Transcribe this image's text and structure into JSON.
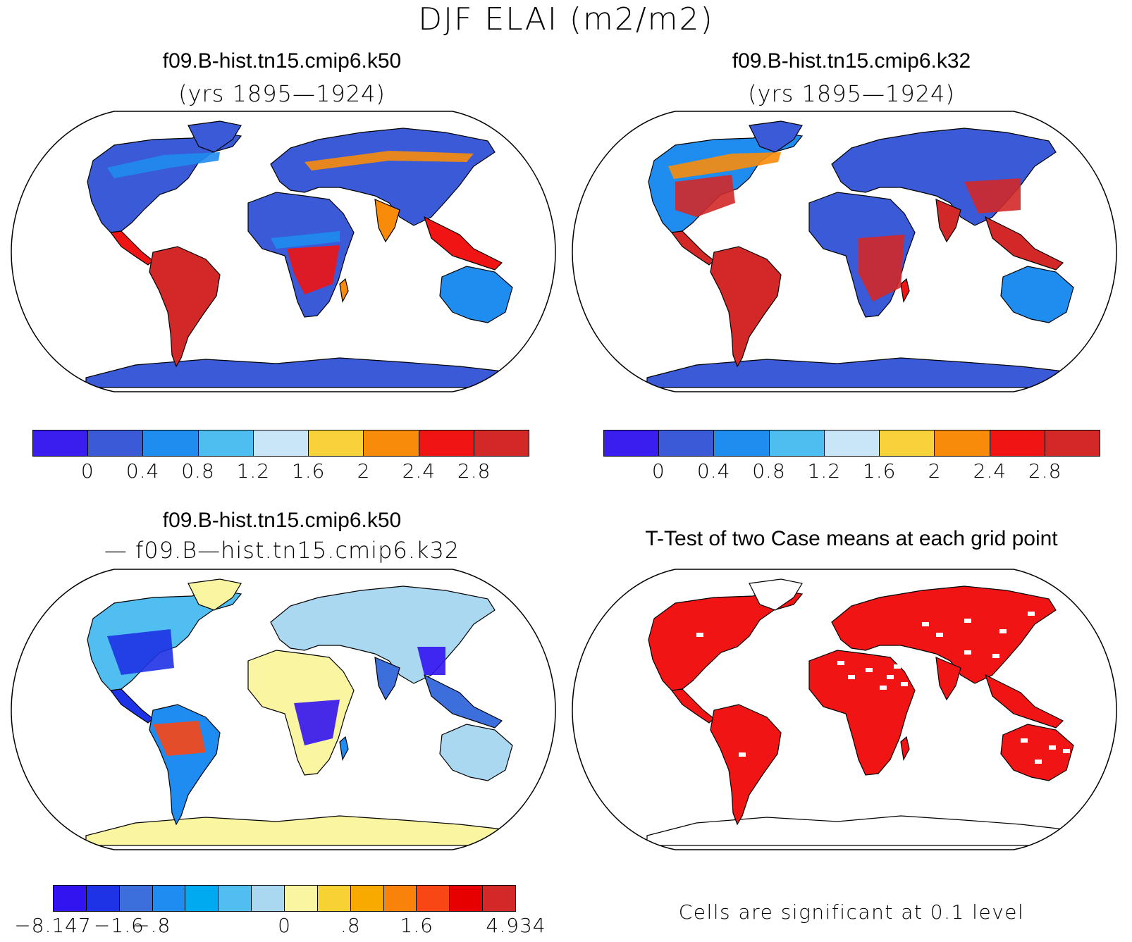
{
  "figure_title": "DJF ELAI (m2/m2)",
  "panels": [
    {
      "id": "case1",
      "title": "f09.B-hist.tn15.cmip6.k50",
      "subtitle": "(yrs 1895—1924)",
      "palette": "abs"
    },
    {
      "id": "case2",
      "title": "f09.B-hist.tn15.cmip6.k32",
      "subtitle": "(yrs 1895—1924)",
      "palette": "abs"
    },
    {
      "id": "diff",
      "title": "f09.B-hist.tn15.cmip6.k50",
      "subtitle": "— f09.B—hist.tn15.cmip6.k32",
      "palette": "diff"
    },
    {
      "id": "ttest",
      "title": "T-Test of two Case means at each grid point",
      "subtitle": "",
      "palette": "sig"
    }
  ],
  "colorbars": {
    "abs": {
      "colors": [
        "#3a1ef0",
        "#3a5ad8",
        "#1f8cf0",
        "#4ebef0",
        "#c8e6f8",
        "#f8d23a",
        "#f88c0a",
        "#f01414",
        "#d22828"
      ],
      "labels": [
        "0",
        "0.4",
        "0.8",
        "1.2",
        "1.6",
        "2",
        "2.4",
        "2.8"
      ]
    },
    "diff": {
      "colors": [
        "#3214f0",
        "#1e32e6",
        "#3c6edc",
        "#1e8cf0",
        "#00aaf0",
        "#50bef0",
        "#aad8f0",
        "#faf5a0",
        "#f8d232",
        "#f8aa00",
        "#f8820a",
        "#f84614",
        "#e60000",
        "#d22828"
      ],
      "labels": [
        "−8.147",
        "−1.6",
        "−.8",
        "0",
        ".8",
        "1.6",
        "4.934"
      ]
    }
  },
  "significance_note": "Cells are significant at 0.1 level",
  "colors": {
    "land_sig": "#f01414",
    "antarctica_diff": "#faf0a0",
    "antarctica_abs": "#3a5ad8"
  }
}
